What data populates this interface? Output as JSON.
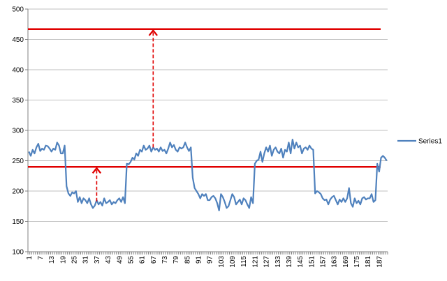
{
  "chart_data": {
    "type": "line",
    "title": "",
    "xlabel": "",
    "ylabel": "",
    "ylim": [
      100,
      500
    ],
    "y_ticks": [
      "100",
      "150",
      "200",
      "250",
      "300",
      "350",
      "400",
      "450",
      "500"
    ],
    "x_tick_labels": [
      "1",
      "7",
      "13",
      "19",
      "25",
      "31",
      "37",
      "43",
      "49",
      "55",
      "61",
      "67",
      "73",
      "79",
      "85",
      "91",
      "97",
      "103",
      "109",
      "115",
      "121",
      "127",
      "133",
      "139",
      "145",
      "151",
      "157",
      "163",
      "169",
      "175",
      "181",
      "187"
    ],
    "grid": "horizontal",
    "legend": {
      "position": "right"
    },
    "series": [
      {
        "name": "Series1",
        "color": "#4F81BD",
        "values": [
          265,
          258,
          268,
          262,
          272,
          278,
          266,
          270,
          268,
          275,
          274,
          270,
          265,
          270,
          268,
          280,
          275,
          262,
          262,
          275,
          208,
          196,
          192,
          198,
          196,
          200,
          182,
          190,
          180,
          188,
          185,
          180,
          188,
          178,
          172,
          176,
          185,
          178,
          182,
          176,
          188,
          180,
          182,
          185,
          178,
          182,
          180,
          185,
          188,
          182,
          190,
          180,
          245,
          244,
          248,
          255,
          252,
          262,
          258,
          268,
          265,
          275,
          268,
          270,
          275,
          265,
          272,
          268,
          270,
          265,
          272,
          266,
          268,
          262,
          270,
          280,
          272,
          276,
          268,
          265,
          272,
          270,
          272,
          280,
          272,
          266,
          272,
          222,
          205,
          200,
          195,
          188,
          195,
          192,
          195,
          185,
          185,
          190,
          192,
          188,
          180,
          168,
          195,
          190,
          182,
          172,
          175,
          185,
          195,
          190,
          178,
          182,
          186,
          178,
          188,
          185,
          178,
          172,
          190,
          180,
          245,
          250,
          252,
          265,
          248,
          262,
          272,
          265,
          275,
          258,
          268,
          272,
          265,
          262,
          270,
          255,
          268,
          265,
          280,
          262,
          285,
          270,
          280,
          272,
          275,
          262,
          270,
          272,
          268,
          275,
          270,
          268,
          196,
          200,
          198,
          195,
          188,
          185,
          186,
          178,
          186,
          190,
          192,
          185,
          178,
          186,
          182,
          188,
          182,
          188,
          205,
          180,
          174,
          188,
          180,
          184,
          178,
          188,
          190,
          186,
          188,
          188,
          195,
          182,
          185,
          245,
          232,
          255,
          258,
          255,
          250
        ]
      }
    ],
    "reference_lines": [
      {
        "type": "horizontal",
        "y": 467,
        "color": "#E00000"
      },
      {
        "type": "horizontal",
        "y": 240,
        "color": "#E00000"
      },
      {
        "type": "arrow",
        "x": 67,
        "y_from": 272,
        "y_to": 467,
        "color": "#E00000",
        "style": "dashed"
      },
      {
        "type": "arrow",
        "x": 37,
        "y_from": 183,
        "y_to": 240,
        "color": "#E00000",
        "style": "dashed"
      }
    ]
  }
}
